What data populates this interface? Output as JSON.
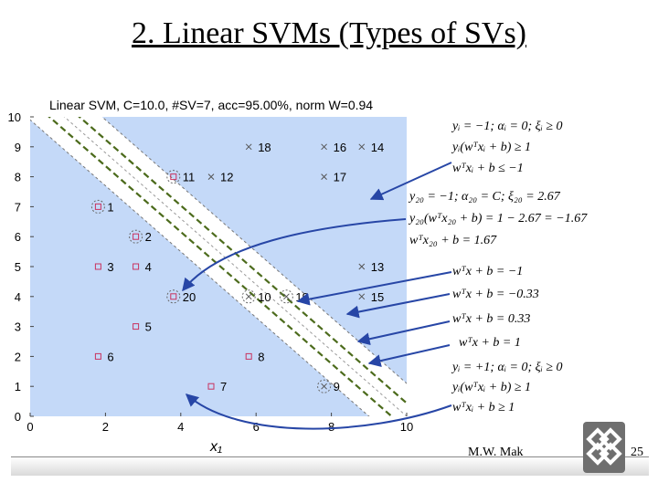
{
  "slide": {
    "title": "2. Linear SVMs (Types of SVs)",
    "author": "M.W. Mak",
    "page_number": "25"
  },
  "equations": {
    "neg_group": [
      "yᵢ = −1; αᵢ = 0; ξᵢ ≥ 0",
      "yᵢ(wᵀxᵢ + b) ≥ 1",
      "wᵀxᵢ + b ≤ −1"
    ],
    "sv20_group": [
      "y₂₀ = −1; α₂₀ = C; ξ₂₀ = 2.67",
      "y₂₀(wᵀx₂₀ + b) = 1 − 2.67 = −1.67",
      "wᵀx₂₀ + b = 1.67"
    ],
    "lines_group": [
      "wᵀx + b = −1",
      "wᵀx + b = −0.33",
      "wᵀx + b = 0.33",
      "wᵀx + b = 1"
    ],
    "pos_group": [
      "yᵢ = +1; αᵢ = 0; ξᵢ ≥ 0",
      "yᵢ(wᵀxᵢ + b) ≥ 1",
      "wᵀxᵢ + b ≥ 1"
    ]
  },
  "colors": {
    "positive_region": "#c4d9f8",
    "negative_region": "#ffffff",
    "margin_line": "#4c6b1c",
    "arrow": "#2746a6"
  },
  "chart_data": {
    "type": "scatter",
    "title": "Linear SVM, C=10.0, #SV=7, acc=95.00%, norm W=0.94",
    "xlabel": "x₁",
    "xlim": [
      0,
      10
    ],
    "ylim": [
      0,
      10
    ],
    "xticks": [
      0,
      2,
      4,
      6,
      8,
      10
    ],
    "yticks": [
      0,
      1,
      2,
      3,
      4,
      5,
      6,
      7,
      8,
      9,
      10
    ],
    "decision_boundary": {
      "x1_intercept": 10,
      "x2_intercept": 11
    },
    "points": [
      {
        "id": 1,
        "x": 2,
        "y": 7,
        "cls": "sq",
        "sv": true
      },
      {
        "id": 2,
        "x": 3,
        "y": 6,
        "cls": "sq",
        "sv": true
      },
      {
        "id": 3,
        "x": 2,
        "y": 5,
        "cls": "sq",
        "sv": false
      },
      {
        "id": 4,
        "x": 3,
        "y": 5,
        "cls": "sq",
        "sv": false
      },
      {
        "id": 5,
        "x": 3,
        "y": 3,
        "cls": "sq",
        "sv": false
      },
      {
        "id": 6,
        "x": 2,
        "y": 2,
        "cls": "sq",
        "sv": false
      },
      {
        "id": 7,
        "x": 5,
        "y": 1,
        "cls": "sq",
        "sv": false
      },
      {
        "id": 8,
        "x": 6,
        "y": 2,
        "cls": "sq",
        "sv": false
      },
      {
        "id": 9,
        "x": 8,
        "y": 1,
        "cls": "x",
        "sv": true
      },
      {
        "id": 10,
        "x": 6,
        "y": 4,
        "cls": "x",
        "sv": true
      },
      {
        "id": 11,
        "x": 4,
        "y": 8,
        "cls": "sq",
        "sv": true
      },
      {
        "id": 12,
        "x": 5,
        "y": 8,
        "cls": "x",
        "sv": false
      },
      {
        "id": 13,
        "x": 9,
        "y": 5,
        "cls": "x",
        "sv": false
      },
      {
        "id": 14,
        "x": 9,
        "y": 9,
        "cls": "x",
        "sv": false
      },
      {
        "id": 15,
        "x": 9,
        "y": 4,
        "cls": "x",
        "sv": false
      },
      {
        "id": 16,
        "x": 8,
        "y": 9,
        "cls": "x",
        "sv": false
      },
      {
        "id": 17,
        "x": 8,
        "y": 8,
        "cls": "x",
        "sv": false
      },
      {
        "id": 18,
        "x": 6,
        "y": 9,
        "cls": "x",
        "sv": false
      },
      {
        "id": 19,
        "x": 7,
        "y": 4,
        "cls": "x",
        "sv": true
      },
      {
        "id": 20,
        "x": 4,
        "y": 4,
        "cls": "sq",
        "sv": true
      }
    ]
  }
}
